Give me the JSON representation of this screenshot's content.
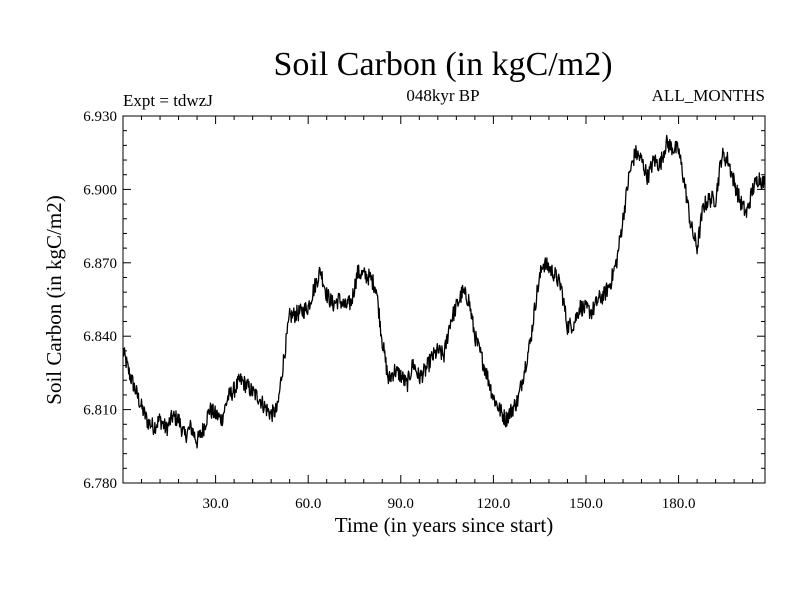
{
  "chart_data": {
    "type": "line",
    "title": "Soil Carbon (in kgC/m2)",
    "subtitle": "048kyr BP",
    "left_label": "Expt = tdwzJ",
    "right_label": "ALL_MONTHS",
    "xlabel": "Time (in years since start)",
    "ylabel": "Soil Carbon (in kgC/m2)",
    "xlim": [
      0,
      208
    ],
    "ylim": [
      6.78,
      6.93
    ],
    "xticks": [
      30,
      60,
      90,
      120,
      150,
      180
    ],
    "xtick_labels": [
      "30.0",
      "60.0",
      "90.0",
      "120.0",
      "150.0",
      "180.0"
    ],
    "yticks": [
      6.78,
      6.81,
      6.84,
      6.87,
      6.9,
      6.93
    ],
    "ytick_labels": [
      "6.780",
      "6.810",
      "6.840",
      "6.870",
      "6.900",
      "6.930"
    ],
    "grid": false,
    "series": [
      {
        "name": "Soil Carbon",
        "color": "#000000",
        "x": [
          0,
          2,
          4,
          6,
          8,
          10,
          12,
          14,
          16,
          18,
          20,
          22,
          24,
          26,
          28,
          30,
          32,
          34,
          36,
          38,
          40,
          42,
          44,
          46,
          48,
          50,
          52,
          54,
          56,
          58,
          60,
          62,
          64,
          66,
          68,
          70,
          72,
          74,
          76,
          78,
          80,
          82,
          84,
          86,
          88,
          90,
          92,
          94,
          96,
          98,
          100,
          102,
          104,
          106,
          108,
          110,
          112,
          114,
          116,
          118,
          120,
          122,
          124,
          126,
          128,
          130,
          132,
          134,
          136,
          138,
          140,
          142,
          144,
          146,
          148,
          150,
          152,
          154,
          156,
          158,
          160,
          162,
          164,
          166,
          168,
          170,
          172,
          174,
          176,
          178,
          180,
          182,
          184,
          186,
          188,
          190,
          192,
          194,
          196,
          198,
          200,
          202,
          204,
          206,
          208
        ],
        "values": [
          6.834,
          6.825,
          6.818,
          6.811,
          6.805,
          6.803,
          6.806,
          6.802,
          6.807,
          6.806,
          6.799,
          6.803,
          6.797,
          6.802,
          6.81,
          6.808,
          6.806,
          6.815,
          6.818,
          6.822,
          6.82,
          6.817,
          6.815,
          6.811,
          6.808,
          6.81,
          6.83,
          6.848,
          6.849,
          6.85,
          6.852,
          6.86,
          6.867,
          6.857,
          6.853,
          6.855,
          6.852,
          6.854,
          6.866,
          6.865,
          6.864,
          6.86,
          6.838,
          6.822,
          6.826,
          6.824,
          6.82,
          6.829,
          6.823,
          6.826,
          6.831,
          6.834,
          6.832,
          6.846,
          6.852,
          6.858,
          6.855,
          6.84,
          6.832,
          6.824,
          6.815,
          6.81,
          6.806,
          6.81,
          6.814,
          6.826,
          6.838,
          6.857,
          6.87,
          6.868,
          6.865,
          6.86,
          6.844,
          6.845,
          6.852,
          6.851,
          6.85,
          6.855,
          6.857,
          6.862,
          6.871,
          6.888,
          6.906,
          6.915,
          6.912,
          6.905,
          6.912,
          6.91,
          6.919,
          6.917,
          6.916,
          6.902,
          6.885,
          6.876,
          6.893,
          6.896,
          6.896,
          6.914,
          6.912,
          6.903,
          6.895,
          6.89,
          6.9,
          6.905,
          6.902
        ]
      }
    ]
  }
}
